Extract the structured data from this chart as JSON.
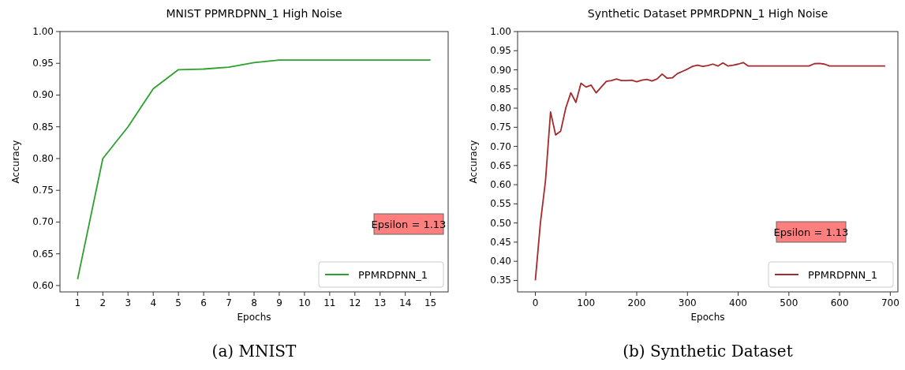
{
  "chart_data": [
    {
      "type": "line",
      "title": "MNIST PPMRDPNN_1 High Noise",
      "xlabel": "Epochs",
      "ylabel": "Accuracy",
      "x": [
        1,
        2,
        3,
        4,
        5,
        6,
        7,
        8,
        9,
        10,
        11,
        12,
        13,
        14,
        15
      ],
      "series": [
        {
          "name": "PPMRDPNN_1",
          "color": "#2ca02c",
          "values": [
            0.61,
            0.8,
            0.85,
            0.91,
            0.94,
            0.941,
            0.944,
            0.951,
            0.955,
            0.955,
            0.955,
            0.955,
            0.955,
            0.955,
            0.955
          ]
        }
      ],
      "xlim": [
        0.3,
        15.7
      ],
      "xticks": [
        1,
        2,
        3,
        4,
        5,
        6,
        7,
        8,
        9,
        10,
        11,
        12,
        13,
        14,
        15
      ],
      "ylim": [
        0.59,
        1.0
      ],
      "yticks": [
        {
          "value": 0.6,
          "label": "0.60"
        },
        {
          "value": 0.65,
          "label": "0.65"
        },
        {
          "value": 0.7,
          "label": "0.70"
        },
        {
          "value": 0.75,
          "label": "0.75"
        },
        {
          "value": 0.8,
          "label": "0.80"
        },
        {
          "value": 0.85,
          "label": "0.85"
        },
        {
          "value": 0.9,
          "label": "0.90"
        },
        {
          "value": 0.95,
          "label": "0.95"
        },
        {
          "value": 1.0,
          "label": "1.00"
        }
      ],
      "legend": "bottom right",
      "annotations": [
        "Epsilon = 1.13",
        "(a) MNIST"
      ]
    },
    {
      "type": "line",
      "title": "Synthetic Dataset PPMRDPNN_1 High Noise",
      "xlabel": "Epochs",
      "ylabel": "Accuracy",
      "x": [
        0,
        10,
        20,
        30,
        40,
        50,
        60,
        70,
        80,
        90,
        100,
        110,
        120,
        130,
        140,
        150,
        160,
        170,
        180,
        190,
        200,
        210,
        220,
        230,
        240,
        250,
        260,
        270,
        280,
        290,
        300,
        310,
        320,
        330,
        340,
        350,
        360,
        370,
        380,
        390,
        400,
        410,
        420,
        540,
        550,
        560,
        570,
        580,
        690
      ],
      "series": [
        {
          "name": "PPMRDPNN_1",
          "color": "#a52a2a",
          "values": [
            0.35,
            0.5,
            0.61,
            0.79,
            0.73,
            0.74,
            0.8,
            0.84,
            0.815,
            0.865,
            0.855,
            0.86,
            0.84,
            0.855,
            0.87,
            0.872,
            0.876,
            0.872,
            0.872,
            0.873,
            0.869,
            0.873,
            0.875,
            0.871,
            0.876,
            0.889,
            0.878,
            0.879,
            0.89,
            0.896,
            0.902,
            0.909,
            0.912,
            0.909,
            0.911,
            0.915,
            0.91,
            0.918,
            0.91,
            0.912,
            0.915,
            0.919,
            0.91,
            0.91,
            0.916,
            0.917,
            0.915,
            0.91,
            0.91
          ]
        }
      ],
      "xlim": [
        -35,
        715
      ],
      "xticks": [
        0,
        100,
        200,
        300,
        400,
        500,
        600,
        700
      ],
      "ylim": [
        0.32,
        1.0
      ],
      "yticks": [
        {
          "value": 0.35,
          "label": "0.35"
        },
        {
          "value": 0.4,
          "label": "0.40"
        },
        {
          "value": 0.45,
          "label": "0.45"
        },
        {
          "value": 0.5,
          "label": "0.50"
        },
        {
          "value": 0.55,
          "label": "0.55"
        },
        {
          "value": 0.6,
          "label": "0.60"
        },
        {
          "value": 0.65,
          "label": "0.65"
        },
        {
          "value": 0.7,
          "label": "0.70"
        },
        {
          "value": 0.75,
          "label": "0.75"
        },
        {
          "value": 0.8,
          "label": "0.80"
        },
        {
          "value": 0.85,
          "label": "0.85"
        },
        {
          "value": 0.9,
          "label": "0.90"
        },
        {
          "value": 0.95,
          "label": "0.95"
        },
        {
          "value": 1.0,
          "label": "1.00"
        }
      ],
      "legend": "bottom right",
      "annotations": [
        "Epsilon = 1.13",
        "(b) Synthetic Dataset"
      ]
    }
  ]
}
